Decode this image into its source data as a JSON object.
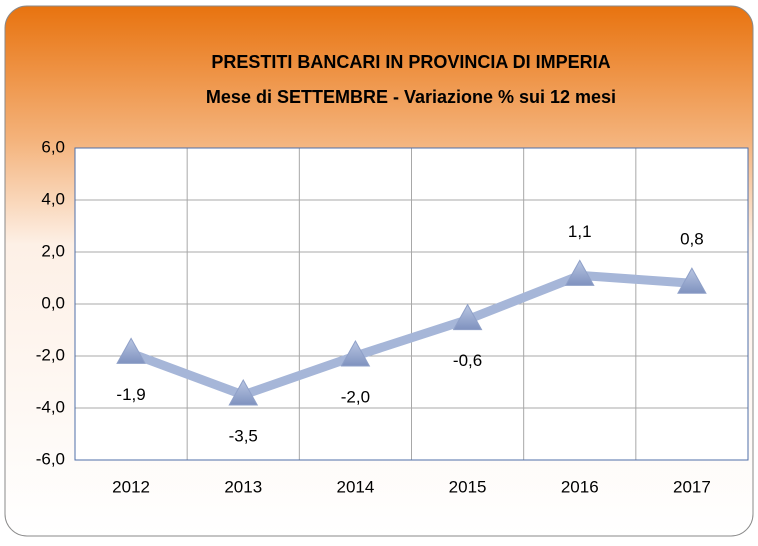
{
  "chart_data": {
    "type": "line",
    "title": "PRESTITI BANCARI IN PROVINCIA DI IMPERIA",
    "subtitle": "Mese di SETTEMBRE -  Variazione % sui 12 mesi",
    "categories": [
      "2012",
      "2013",
      "2014",
      "2015",
      "2016",
      "2017"
    ],
    "values": [
      -1.9,
      -3.5,
      -2.0,
      -0.6,
      1.1,
      0.8
    ],
    "value_labels": [
      "-1,9",
      "-3,5",
      "-2,0",
      "-0,6",
      "1,1",
      "0,8"
    ],
    "color": "#a6b6d8",
    "marker_color": "#8fa0c8",
    "ylim": [
      -6,
      6
    ],
    "yticks": [
      {
        "value": -6,
        "label": "-6,0"
      },
      {
        "value": -4,
        "label": "-4,0"
      },
      {
        "value": -2,
        "label": "-2,0"
      },
      {
        "value": 0,
        "label": "0,0"
      },
      {
        "value": 2,
        "label": "2,0"
      },
      {
        "value": 4,
        "label": "4,0"
      },
      {
        "value": 6,
        "label": "6,0"
      }
    ],
    "grid": true
  }
}
